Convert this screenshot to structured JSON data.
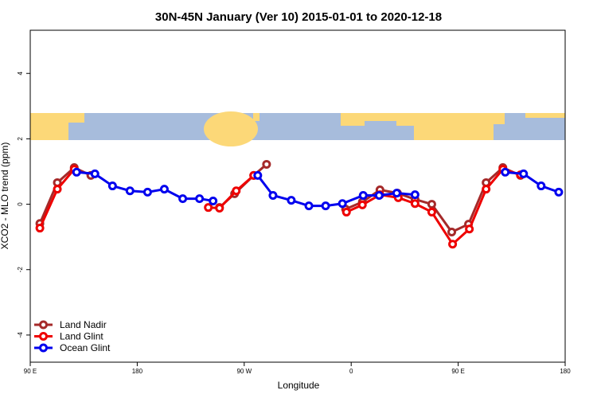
{
  "chart_data": {
    "type": "line",
    "title": "30N-45N January (Ver 10)   2015-01-01 to 2020-12-18",
    "x_label": "Longitude",
    "y_label": "XCO2 - MLO trend (ppm)",
    "xlim": [
      90,
      540
    ],
    "ylim": [
      -4.83,
      5.32
    ],
    "xticks": [
      {
        "value": 90,
        "label": "90 E"
      },
      180,
      {
        "value": 270,
        "label": "90 W"
      },
      {
        "value": 360,
        "label": "0"
      },
      {
        "value": 450,
        "label": "90 E"
      },
      {
        "value": 540,
        "label": "180"
      }
    ],
    "yticks": [
      -4,
      -2,
      0,
      2,
      4
    ],
    "legend": "bottom-left",
    "series": [
      {
        "name": "Land Nadir",
        "color": "#a52a2a",
        "x": [
          98.1,
          112.8,
          127.0,
          141.0,
          null,
          249.2,
          261.9,
          278.0,
          288.8,
          null,
          355.3,
          369.4,
          384.2,
          398.9,
          413.7,
          427.8,
          444.6,
          458.7,
          473.5,
          487.6,
          502.4
        ],
        "values": [
          -0.59,
          0.66,
          1.12,
          0.88,
          null,
          -0.1,
          0.32,
          0.88,
          1.22,
          null,
          -0.15,
          0.07,
          0.44,
          0.34,
          0.15,
          0.0,
          -0.85,
          -0.61,
          0.66,
          1.12,
          0.88
        ]
      },
      {
        "name": "Land Glint",
        "color": "#ee0000",
        "x": [
          98.1,
          112.8,
          127.0,
          null,
          239.8,
          249.2,
          263.3,
          278.0,
          null,
          356.0,
          369.4,
          384.2,
          399.6,
          413.7,
          427.8,
          445.3,
          459.4,
          473.5,
          487.6,
          502.4
        ],
        "values": [
          -0.73,
          0.46,
          1.07,
          null,
          -0.1,
          -0.12,
          0.41,
          0.88,
          null,
          -0.24,
          -0.02,
          0.29,
          0.2,
          0.02,
          -0.24,
          -1.22,
          -0.76,
          0.46,
          1.07,
          0.9
        ]
      },
      {
        "name": "Ocean Glint",
        "color": "#0000ee",
        "x": [
          129.0,
          144.4,
          159.2,
          173.9,
          188.7,
          202.8,
          218.3,
          232.4,
          243.8,
          null,
          281.4,
          294.2,
          309.6,
          324.4,
          338.5,
          352.6,
          370.1,
          383.5,
          398.3,
          413.7,
          null,
          489.6,
          505.0,
          519.8,
          534.6
        ],
        "values": [
          0.98,
          0.93,
          0.56,
          0.41,
          0.37,
          0.46,
          0.17,
          0.17,
          0.1,
          null,
          0.88,
          0.27,
          0.12,
          -0.05,
          -0.05,
          0.02,
          0.27,
          0.27,
          0.34,
          0.29,
          null,
          0.98,
          0.93,
          0.56,
          0.37
        ]
      }
    ]
  }
}
